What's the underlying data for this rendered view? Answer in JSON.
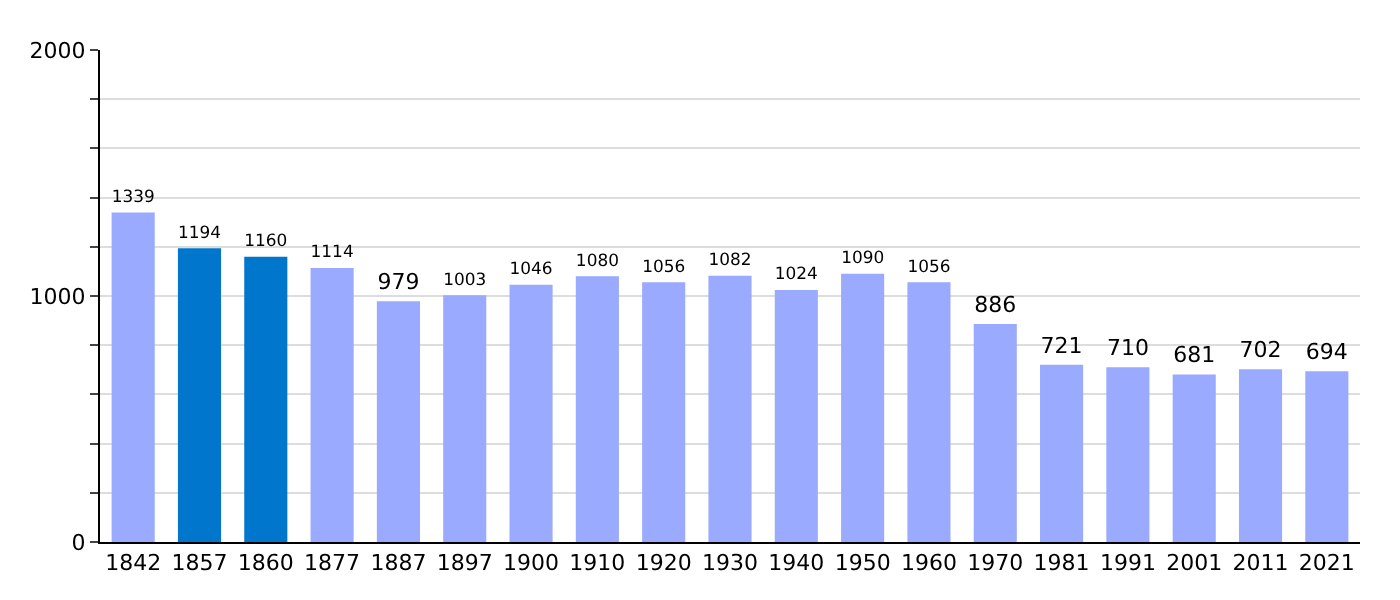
{
  "chart_data": {
    "type": "bar",
    "categories": [
      "1842",
      "1857",
      "1860",
      "1877",
      "1887",
      "1897",
      "1900",
      "1910",
      "1920",
      "1930",
      "1940",
      "1950",
      "1960",
      "1970",
      "1981",
      "1991",
      "2001",
      "2011",
      "2021"
    ],
    "values": [
      1339,
      1194,
      1160,
      1114,
      979,
      1003,
      1046,
      1080,
      1056,
      1082,
      1024,
      1090,
      1056,
      886,
      721,
      710,
      681,
      702,
      694
    ],
    "colors": [
      "#99aaff",
      "#0077cc",
      "#0077cc",
      "#99aaff",
      "#99aaff",
      "#99aaff",
      "#99aaff",
      "#99aaff",
      "#99aaff",
      "#99aaff",
      "#99aaff",
      "#99aaff",
      "#99aaff",
      "#99aaff",
      "#99aaff",
      "#99aaff",
      "#99aaff",
      "#99aaff",
      "#99aaff"
    ],
    "ylim": [
      0,
      2000
    ],
    "yticks": [
      0,
      {
        "value": 200,
        "label": null
      },
      {
        "value": 400,
        "label": null
      },
      {
        "value": 600,
        "label": null
      },
      {
        "value": 800,
        "label": null
      },
      1000,
      {
        "value": 1200,
        "label": null
      },
      {
        "value": 1400,
        "label": null
      },
      {
        "value": 1600,
        "label": null
      },
      {
        "value": 1800,
        "label": null
      },
      2000
    ],
    "grid": "y",
    "data_labels": true,
    "legend": false
  }
}
